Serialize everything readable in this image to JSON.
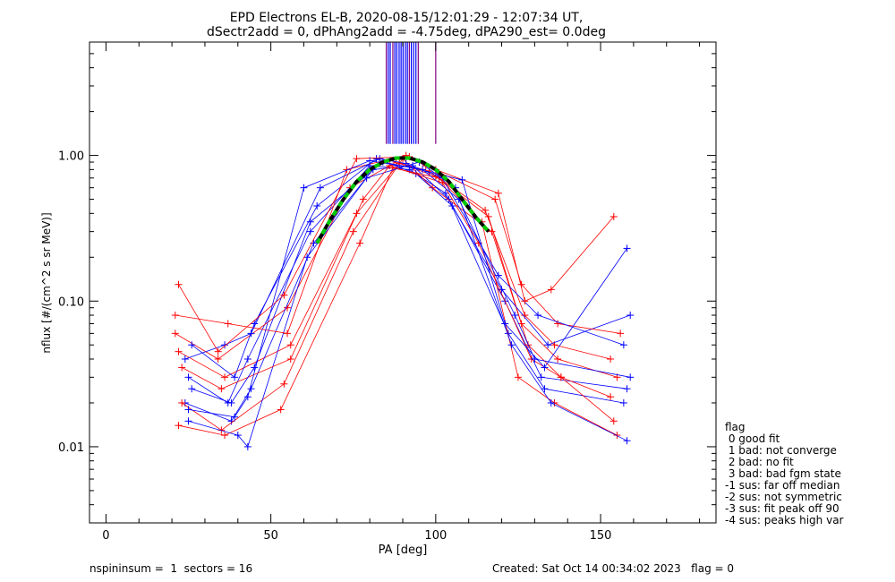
{
  "chart_data": {
    "type": "line",
    "title": "EPD Electrons EL-B, 2020-08-15/12:01:29 - 12:07:34 UT,",
    "subtitle": "dSectr2add = 0, dPhAng2add = -4.75deg, dPA290_est=   0.0deg",
    "xlabel": "PA [deg]",
    "ylabel": "nflux [#/(cm^2 s sr MeV)]",
    "xlim": [
      -5,
      185
    ],
    "ylim": [
      0.003,
      6
    ],
    "yscale": "log",
    "grid": false,
    "xticks": [
      0,
      50,
      100,
      150
    ],
    "xtick_labels": [
      "0",
      "50",
      "100",
      "150"
    ],
    "yticks": [
      0.01,
      0.1,
      1.0
    ],
    "ytick_labels": [
      "0.01",
      "0.10",
      "1.00"
    ],
    "series": [
      {
        "color": "#ff0000",
        "x": [
          22,
          36,
          56,
          76,
          89,
          100,
          116,
          126,
          137,
          155
        ],
        "values": [
          0.045,
          0.03,
          0.05,
          0.4,
          0.88,
          0.72,
          0.38,
          0.07,
          0.04,
          0.03
        ]
      },
      {
        "color": "#0000ff",
        "x": [
          25,
          37,
          43,
          62,
          80,
          92,
          103,
          121,
          132,
          158
        ],
        "values": [
          0.03,
          0.02,
          0.04,
          0.3,
          0.85,
          0.8,
          0.55,
          0.1,
          0.03,
          0.025
        ]
      },
      {
        "color": "#ff0000",
        "x": [
          21,
          34,
          55,
          74,
          88,
          98,
          115,
          127,
          136,
          153
        ],
        "values": [
          0.06,
          0.04,
          0.09,
          0.6,
          0.9,
          0.78,
          0.42,
          0.08,
          0.05,
          0.04
        ]
      },
      {
        "color": "#0000ff",
        "x": [
          24,
          38,
          44,
          63,
          81,
          93,
          104,
          122,
          133,
          157
        ],
        "values": [
          0.02,
          0.015,
          0.025,
          0.25,
          0.8,
          0.85,
          0.5,
          0.06,
          0.025,
          0.02
        ]
      },
      {
        "color": "#ff0000",
        "x": [
          23,
          35,
          54,
          75,
          90,
          99,
          117,
          128,
          138,
          154
        ],
        "values": [
          0.02,
          0.013,
          0.027,
          0.3,
          0.95,
          0.6,
          0.3,
          0.05,
          0.03,
          0.015
        ]
      },
      {
        "color": "#0000ff",
        "x": [
          26,
          39,
          45,
          64,
          82,
          94,
          105,
          120,
          134,
          159
        ],
        "values": [
          0.05,
          0.03,
          0.07,
          0.45,
          0.95,
          0.75,
          0.45,
          0.12,
          0.05,
          0.08
        ]
      },
      {
        "color": "#ff0000",
        "x": [
          22,
          36,
          53,
          77,
          87,
          101,
          114,
          125,
          136,
          155
        ],
        "values": [
          0.014,
          0.012,
          0.018,
          0.25,
          0.82,
          0.7,
          0.35,
          0.03,
          0.02,
          0.012
        ]
      },
      {
        "color": "#0000ff",
        "x": [
          25,
          40,
          43,
          61,
          79,
          95,
          106,
          123,
          135,
          158
        ],
        "values": [
          0.015,
          0.012,
          0.01,
          0.2,
          0.7,
          0.9,
          0.6,
          0.05,
          0.02,
          0.011
        ]
      },
      {
        "color": "#ff0000",
        "x": [
          21,
          37,
          55,
          73,
          91,
          97,
          118,
          126,
          137,
          156
        ],
        "values": [
          0.08,
          0.07,
          0.06,
          0.8,
          1.0,
          0.85,
          0.5,
          0.13,
          0.07,
          0.06
        ]
      },
      {
        "color": "#0000ff",
        "x": [
          24,
          36,
          44,
          65,
          83,
          91,
          102,
          119,
          131,
          157
        ],
        "values": [
          0.04,
          0.05,
          0.06,
          0.6,
          0.95,
          0.88,
          0.7,
          0.15,
          0.08,
          0.05
        ]
      },
      {
        "color": "#ff0000",
        "x": [
          23,
          35,
          56,
          78,
          86,
          102,
          113,
          129,
          138,
          153
        ],
        "values": [
          0.035,
          0.025,
          0.04,
          0.5,
          0.85,
          0.65,
          0.25,
          0.04,
          0.03,
          0.022
        ]
      },
      {
        "color": "#0000ff",
        "x": [
          26,
          38,
          45,
          62,
          84,
          96,
          107,
          124,
          130,
          159
        ],
        "values": [
          0.025,
          0.02,
          0.035,
          0.35,
          0.9,
          0.8,
          0.5,
          0.08,
          0.04,
          0.03
        ]
      },
      {
        "color": "#ff0000",
        "x": [
          22,
          34,
          54,
          76,
          92,
          100,
          119,
          127,
          135,
          154
        ],
        "values": [
          0.13,
          0.045,
          0.11,
          0.95,
          0.98,
          0.8,
          0.55,
          0.1,
          0.12,
          0.38
        ]
      },
      {
        "color": "#0000ff",
        "x": [
          25,
          39,
          43,
          60,
          80,
          93,
          108,
          121,
          133,
          158
        ],
        "values": [
          0.018,
          0.016,
          0.022,
          0.6,
          0.92,
          0.82,
          0.68,
          0.07,
          0.035,
          0.23
        ]
      }
    ],
    "fit_curve": {
      "color": "#00cc00",
      "x": [
        64,
        68,
        72,
        76,
        80,
        84,
        88,
        92,
        96,
        100,
        104,
        108,
        112,
        116
      ],
      "values": [
        0.25,
        0.36,
        0.5,
        0.66,
        0.8,
        0.9,
        0.96,
        0.96,
        0.9,
        0.8,
        0.66,
        0.5,
        0.38,
        0.3
      ]
    },
    "peak_markers": {
      "x": [
        85,
        85.6,
        86.2,
        87,
        87.6,
        88.2,
        88.9,
        89.5,
        90.1,
        90.8,
        91.4,
        92,
        92.6,
        93.3,
        94,
        94.7,
        100
      ],
      "colors": [
        "#800080",
        "#0000ff",
        "#0000ff",
        "#800080",
        "#0000ff",
        "#0000ff",
        "#0000ff",
        "#0000ff",
        "#0000ff",
        "#0000ff",
        "#0000ff",
        "#800080",
        "#0000ff",
        "#0000ff",
        "#0000ff",
        "#800080",
        "#800080"
      ]
    }
  },
  "legend": {
    "title": "flag",
    "items": [
      " 0 good fit",
      " 1 bad: not converge",
      " 2 bad: no fit",
      " 3 bad: bad fgm state",
      "-1 sus: far off median",
      "-2 sus: not symmetric",
      "-3 sus: fit peak off 90",
      "-4 sus: peaks high var"
    ]
  },
  "footer": {
    "left": "nspininsum =  1  sectors = 16",
    "right": "Created: Sat Oct 14 00:34:02 2023   flag = 0"
  }
}
